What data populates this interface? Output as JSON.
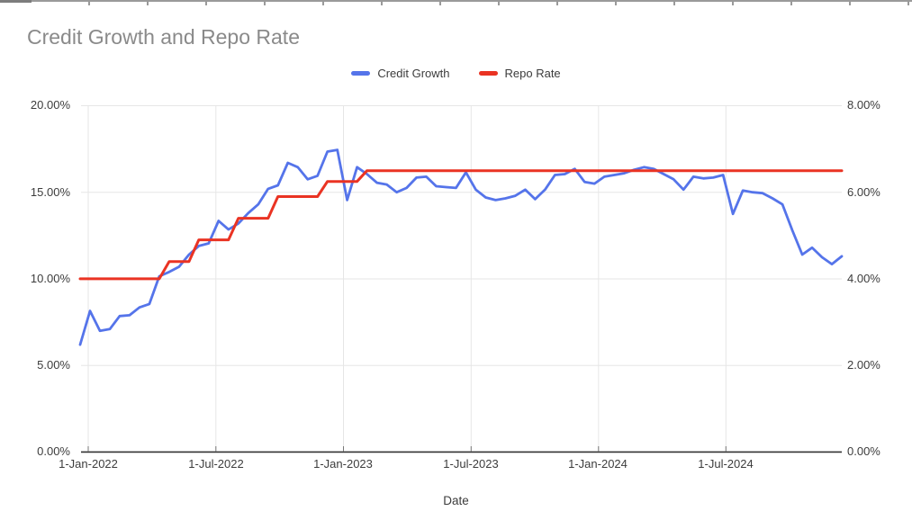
{
  "title": "Credit Growth and Repo Rate",
  "x_axis_title": "Date",
  "colors": {
    "credit_growth": "#5574ea",
    "repo_rate": "#ea3323",
    "title_text": "#8a8a8a",
    "axis_text": "#3c3c3c",
    "gridline": "#e6e6e6",
    "baseline": "#333333"
  },
  "legend": {
    "credit_growth_label": "Credit Growth",
    "repo_rate_label": "Repo Rate"
  },
  "chart_data": {
    "type": "line",
    "title": "Credit Growth and Repo Rate",
    "xlabel": "Date",
    "legend_position": "top",
    "grid": true,
    "x_tick_labels": [
      "1-Jan-2022",
      "1-Jul-2022",
      "1-Jan-2023",
      "1-Jul-2023",
      "1-Jan-2024",
      "1-Jul-2024"
    ],
    "y_left": {
      "ticks": [
        "0.00%",
        "5.00%",
        "10.00%",
        "15.00%",
        "20.00%"
      ],
      "range": [
        0,
        20
      ]
    },
    "y_right": {
      "ticks": [
        "0.00%",
        "2.00%",
        "4.00%",
        "6.00%",
        "8.00%"
      ],
      "range": [
        0,
        8
      ]
    },
    "x": [
      "31-Dec-2021",
      "14-Jan-2022",
      "28-Jan-2022",
      "11-Feb-2022",
      "25-Feb-2022",
      "11-Mar-2022",
      "25-Mar-2022",
      "8-Apr-2022",
      "22-Apr-2022",
      "6-May-2022",
      "20-May-2022",
      "3-Jun-2022",
      "17-Jun-2022",
      "1-Jul-2022",
      "15-Jul-2022",
      "29-Jul-2022",
      "12-Aug-2022",
      "26-Aug-2022",
      "9-Sep-2022",
      "23-Sep-2022",
      "7-Oct-2022",
      "21-Oct-2022",
      "4-Nov-2022",
      "18-Nov-2022",
      "2-Dec-2022",
      "16-Dec-2022",
      "30-Dec-2022",
      "13-Jan-2023",
      "27-Jan-2023",
      "10-Feb-2023",
      "24-Feb-2023",
      "10-Mar-2023",
      "24-Mar-2023",
      "7-Apr-2023",
      "21-Apr-2023",
      "5-May-2023",
      "19-May-2023",
      "2-Jun-2023",
      "16-Jun-2023",
      "30-Jun-2023",
      "14-Jul-2023",
      "28-Jul-2023",
      "11-Aug-2023",
      "25-Aug-2023",
      "8-Sep-2023",
      "22-Sep-2023",
      "6-Oct-2023",
      "20-Oct-2023",
      "3-Nov-2023",
      "17-Nov-2023",
      "1-Dec-2023",
      "15-Dec-2023",
      "29-Dec-2023",
      "12-Jan-2024",
      "26-Jan-2024",
      "9-Feb-2024",
      "23-Feb-2024",
      "8-Mar-2024",
      "22-Mar-2024",
      "5-Apr-2024",
      "19-Apr-2024",
      "3-May-2024",
      "17-May-2024",
      "31-May-2024",
      "14-Jun-2024",
      "28-Jun-2024",
      "12-Jul-2024",
      "26-Jul-2024",
      "9-Aug-2024",
      "23-Aug-2024",
      "6-Sep-2024",
      "20-Sep-2024",
      "4-Oct-2024",
      "18-Oct-2024",
      "1-Nov-2024",
      "15-Nov-2024",
      "29-Nov-2024",
      "13-Dec-2024"
    ],
    "series": [
      {
        "name": "Credit Growth",
        "axis": "left",
        "color": "#5574ea",
        "values": [
          6.2,
          8.15,
          7.0,
          7.1,
          7.85,
          7.9,
          8.35,
          8.55,
          10.15,
          10.4,
          10.7,
          11.4,
          11.9,
          12.05,
          13.35,
          12.85,
          13.2,
          13.8,
          14.3,
          15.2,
          15.4,
          16.7,
          16.45,
          15.75,
          15.95,
          17.35,
          17.45,
          14.55,
          16.45,
          16.05,
          15.55,
          15.45,
          15.0,
          15.25,
          15.85,
          15.9,
          15.35,
          15.3,
          15.25,
          16.15,
          15.15,
          14.7,
          14.55,
          14.65,
          14.8,
          15.15,
          14.6,
          15.15,
          16.0,
          16.05,
          16.35,
          15.6,
          15.5,
          15.9,
          16.0,
          16.1,
          16.3,
          16.45,
          16.35,
          16.05,
          15.75,
          15.15,
          15.9,
          15.8,
          15.85,
          16.0,
          13.75,
          15.1,
          15.0,
          14.95,
          14.65,
          14.3,
          12.8,
          11.4,
          11.8,
          11.25,
          10.85,
          11.3
        ]
      },
      {
        "name": "Repo Rate",
        "axis": "right",
        "color": "#ea3323",
        "values": [
          4.0,
          4.0,
          4.0,
          4.0,
          4.0,
          4.0,
          4.0,
          4.0,
          4.0,
          4.4,
          4.4,
          4.4,
          4.9,
          4.9,
          4.9,
          4.9,
          5.4,
          5.4,
          5.4,
          5.4,
          5.9,
          5.9,
          5.9,
          5.9,
          5.9,
          6.25,
          6.25,
          6.25,
          6.25,
          6.5,
          6.5,
          6.5,
          6.5,
          6.5,
          6.5,
          6.5,
          6.5,
          6.5,
          6.5,
          6.5,
          6.5,
          6.5,
          6.5,
          6.5,
          6.5,
          6.5,
          6.5,
          6.5,
          6.5,
          6.5,
          6.5,
          6.5,
          6.5,
          6.5,
          6.5,
          6.5,
          6.5,
          6.5,
          6.5,
          6.5,
          6.5,
          6.5,
          6.5,
          6.5,
          6.5,
          6.5,
          6.5,
          6.5,
          6.5,
          6.5,
          6.5,
          6.5,
          6.5,
          6.5,
          6.5,
          6.5,
          6.5,
          6.5
        ]
      }
    ]
  }
}
